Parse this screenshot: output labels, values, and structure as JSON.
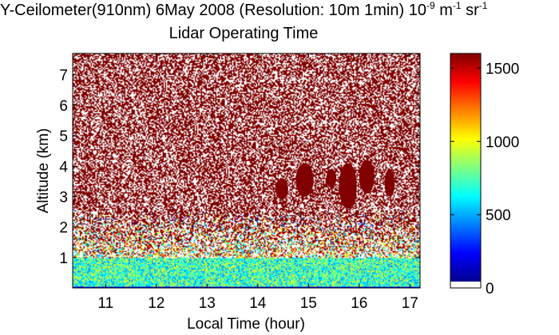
{
  "chart_data": {
    "type": "heatmap",
    "title": {
      "prefix": "Y-Ceilometer(910nm) 6May 2008 (Resolution: 10m 1min) 10",
      "exp1": "-9",
      "mid1": " m",
      "exp2": "-1",
      "mid2": " sr",
      "exp3": "-1"
    },
    "subtitle": "Lidar Operating Time",
    "xlabel": "Local Time (hour)",
    "ylabel": "Altitude (km)",
    "xlim": [
      10.35,
      17.2
    ],
    "ylim": [
      0,
      7.7
    ],
    "xticks": [
      11,
      12,
      13,
      14,
      15,
      16,
      17
    ],
    "yticks": [
      1,
      2,
      3,
      4,
      5,
      6,
      7
    ],
    "colorbar": {
      "ticks": [
        0,
        500,
        1000,
        1500
      ],
      "range": [
        0,
        1600
      ],
      "colormap": "jet"
    },
    "features": {
      "near_surface_layer": {
        "altitude_km": [
          0,
          1.0
        ],
        "value_range": [
          400,
          1000
        ]
      },
      "noise_above_km": 1.5,
      "cloud_patches": [
        {
          "time": [
            14.35,
            14.6
          ],
          "altitude_km": [
            2.9,
            3.6
          ]
        },
        {
          "time": [
            14.75,
            15.1
          ],
          "altitude_km": [
            3.0,
            4.1
          ]
        },
        {
          "time": [
            15.35,
            15.55
          ],
          "altitude_km": [
            3.3,
            3.9
          ]
        },
        {
          "time": [
            15.6,
            15.95
          ],
          "altitude_km": [
            2.6,
            4.1
          ]
        },
        {
          "time": [
            16.0,
            16.3
          ],
          "altitude_km": [
            3.1,
            4.2
          ]
        },
        {
          "time": [
            16.5,
            16.7
          ],
          "altitude_km": [
            3.0,
            3.9
          ]
        }
      ]
    },
    "colors": {
      "high": "#800000",
      "background": "#ffffff"
    }
  }
}
